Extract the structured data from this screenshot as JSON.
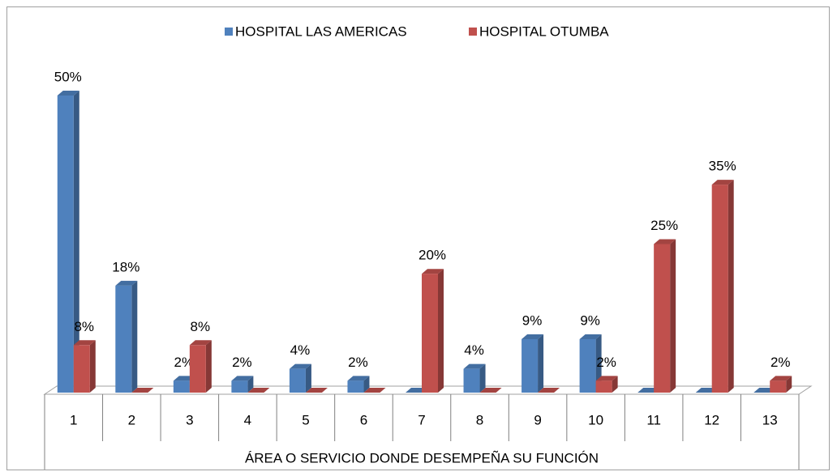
{
  "chart_data": {
    "type": "bar3d",
    "categories": [
      "1",
      "2",
      "3",
      "4",
      "5",
      "6",
      "7",
      "8",
      "9",
      "10",
      "11",
      "12",
      "13"
    ],
    "x_label": "ÁREA O SERVICIO DONDE DESEMPEÑA SU FUNCIÓN",
    "legend": "top",
    "series": [
      {
        "name": "HOSPITAL LAS AMERICAS",
        "color": "#4f81bd",
        "values": [
          50,
          18,
          2,
          2,
          4,
          2,
          0,
          4,
          9,
          9,
          0,
          0,
          0
        ],
        "value_labels": [
          "50%",
          "18%",
          "2%",
          "2%",
          "4%",
          "2%",
          null,
          "4%",
          "9%",
          "9%",
          null,
          null,
          null
        ]
      },
      {
        "name": "HOSPITAL OTUMBA",
        "color": "#c0504d",
        "values": [
          8,
          0,
          8,
          0,
          0,
          0,
          20,
          0,
          0,
          2,
          25,
          35,
          2
        ],
        "value_labels": [
          "8%",
          null,
          "8%",
          null,
          null,
          null,
          "20%",
          null,
          null,
          "2%",
          "25%",
          "35%",
          "2%"
        ]
      }
    ]
  }
}
